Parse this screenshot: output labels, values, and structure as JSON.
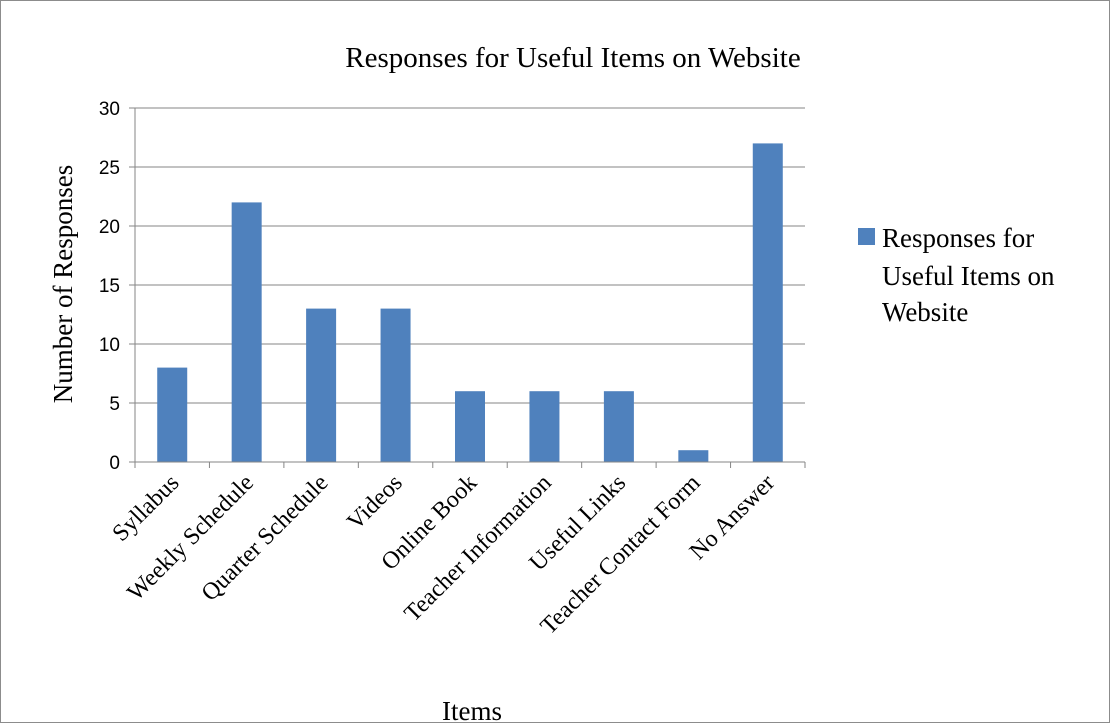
{
  "chart_data": {
    "type": "bar",
    "title": "Responses for Useful Items on Website",
    "xlabel": "Items",
    "ylabel": "Number of Responses",
    "categories": [
      "Syllabus",
      "Weekly Schedule",
      "Quarter Schedule",
      "Videos",
      "Online Book",
      "Teacher Information",
      "Useful Links",
      "Teacher Contact Form",
      "No Answer"
    ],
    "series": [
      {
        "name": "Responses for Useful Items on Website",
        "values": [
          8,
          22,
          13,
          13,
          6,
          6,
          6,
          1,
          27
        ]
      }
    ],
    "ylim": [
      0,
      30
    ],
    "yticks": [
      "0",
      "5",
      "10",
      "15",
      "20",
      "25",
      "30"
    ],
    "grid": true,
    "legend": {
      "placement": "right",
      "lines": [
        "Responses for",
        "Useful Items on",
        "Website"
      ]
    },
    "colors": {
      "bar": "#4F81BD",
      "grid": "#868686",
      "axis": "#868686"
    }
  }
}
